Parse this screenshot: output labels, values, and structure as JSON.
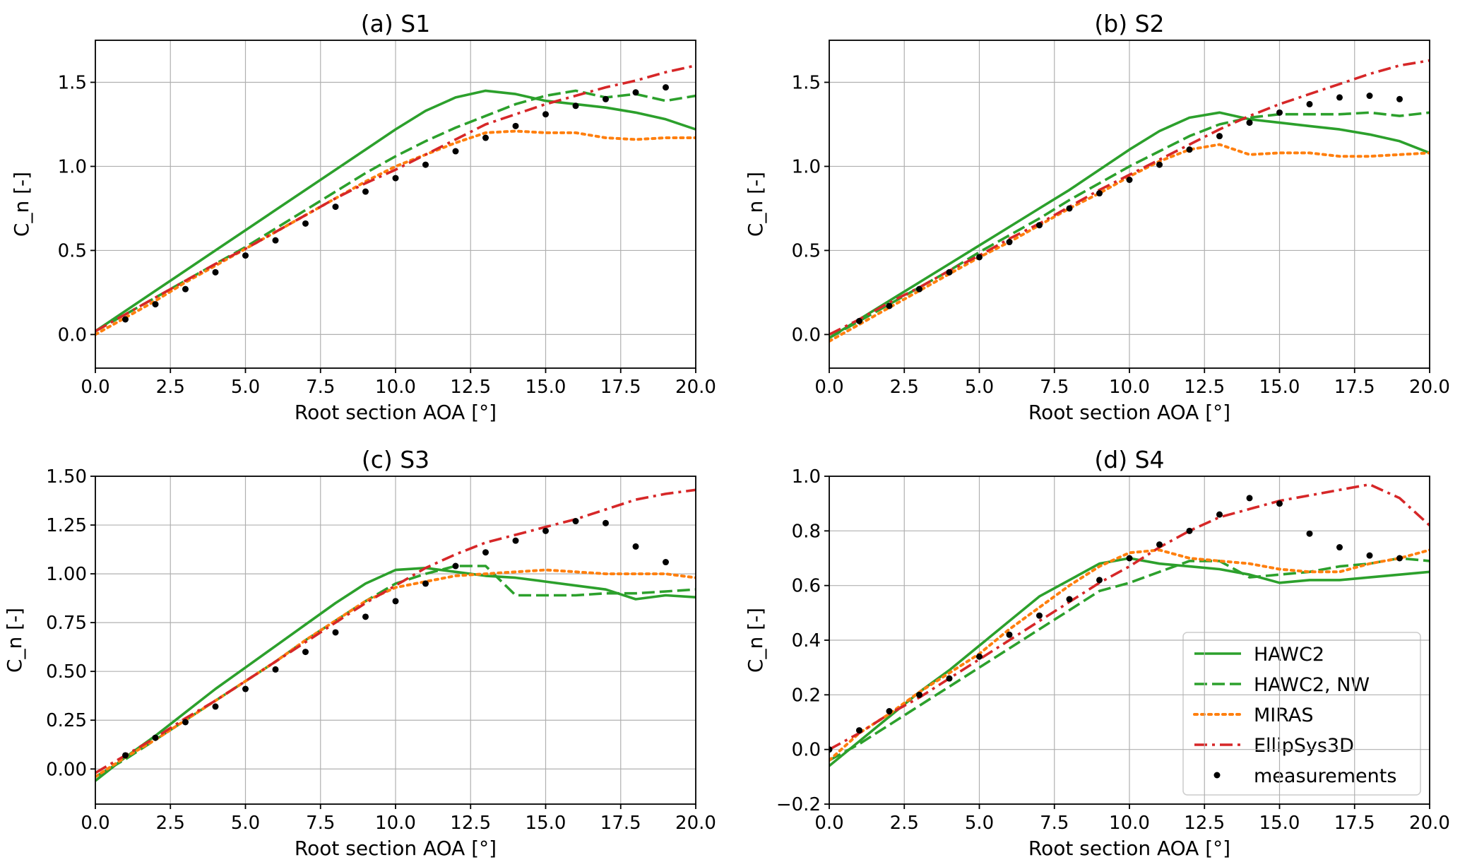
{
  "figure": {
    "series_styles": {
      "HAWC2": {
        "color": "#2ca02c",
        "dash": "solid",
        "marker": "none"
      },
      "HAWC2, NW": {
        "color": "#2ca02c",
        "dash": "dashed",
        "marker": "none"
      },
      "MIRAS": {
        "color": "#ff7f0e",
        "dash": "dotted",
        "marker": "none"
      },
      "EllipSys3D": {
        "color": "#d62728",
        "dash": "dashdot",
        "marker": "none"
      },
      "measurements": {
        "color": "#000000",
        "dash": "none",
        "marker": "dot"
      }
    },
    "legend": {
      "panel": 3,
      "placement": "lower-right",
      "entries": [
        "HAWC2",
        "HAWC2, NW",
        "MIRAS",
        "EllipSys3D",
        "measurements"
      ]
    }
  },
  "chart_data": [
    {
      "type": "line",
      "title": "(a) S1",
      "xlabel": "Root section AOA [°]",
      "ylabel": "C_n [-]",
      "xlim": [
        0,
        20
      ],
      "ylim": [
        -0.2,
        1.75
      ],
      "xticks": [
        "0.0",
        "2.5",
        "5.0",
        "7.5",
        "10.0",
        "12.5",
        "15.0",
        "17.5",
        "20.0"
      ],
      "xtick_values": [
        0,
        2.5,
        5,
        7.5,
        10,
        12.5,
        15,
        17.5,
        20
      ],
      "yticks": [
        "0.0",
        "0.5",
        "1.0",
        "1.5"
      ],
      "ytick_values": [
        0,
        0.5,
        1.0,
        1.5
      ],
      "grid": true,
      "series": [
        {
          "name": "HAWC2",
          "x": [
            0,
            1,
            2,
            3,
            4,
            5,
            6,
            7,
            8,
            9,
            10,
            11,
            12,
            13,
            14,
            15,
            16,
            17,
            18,
            19,
            20
          ],
          "y": [
            0.02,
            0.14,
            0.26,
            0.38,
            0.5,
            0.62,
            0.74,
            0.86,
            0.98,
            1.1,
            1.22,
            1.33,
            1.41,
            1.45,
            1.43,
            1.39,
            1.37,
            1.35,
            1.32,
            1.28,
            1.22
          ]
        },
        {
          "name": "HAWC2, NW",
          "x": [
            0,
            1,
            2,
            3,
            4,
            5,
            6,
            7,
            8,
            9,
            10,
            11,
            12,
            13,
            14,
            15,
            16,
            17,
            18,
            19,
            20
          ],
          "y": [
            0.02,
            0.12,
            0.22,
            0.32,
            0.42,
            0.52,
            0.63,
            0.74,
            0.85,
            0.96,
            1.06,
            1.15,
            1.23,
            1.3,
            1.37,
            1.42,
            1.45,
            1.41,
            1.43,
            1.39,
            1.42
          ]
        },
        {
          "name": "MIRAS",
          "x": [
            0,
            1,
            2,
            3,
            4,
            5,
            6,
            7,
            8,
            9,
            10,
            11,
            12,
            13,
            14,
            15,
            16,
            17,
            18,
            19,
            20
          ],
          "y": [
            0.0,
            0.1,
            0.2,
            0.31,
            0.41,
            0.51,
            0.61,
            0.71,
            0.81,
            0.91,
            1.0,
            1.07,
            1.14,
            1.2,
            1.21,
            1.2,
            1.2,
            1.17,
            1.16,
            1.17,
            1.17
          ]
        },
        {
          "name": "EllipSys3D",
          "x": [
            0,
            1,
            2,
            3,
            4,
            5,
            6,
            7,
            8,
            9,
            10,
            11,
            12,
            13,
            14,
            15,
            16,
            17,
            18,
            19,
            20
          ],
          "y": [
            0.02,
            0.12,
            0.22,
            0.32,
            0.42,
            0.51,
            0.61,
            0.71,
            0.81,
            0.9,
            0.98,
            1.07,
            1.16,
            1.25,
            1.31,
            1.37,
            1.42,
            1.47,
            1.51,
            1.56,
            1.6
          ]
        },
        {
          "name": "measurements",
          "x": [
            1,
            2,
            3,
            4,
            5,
            6,
            7,
            8,
            9,
            10,
            11,
            12,
            13,
            14,
            15,
            16,
            17,
            18,
            19
          ],
          "y": [
            0.09,
            0.18,
            0.27,
            0.37,
            0.47,
            0.56,
            0.66,
            0.76,
            0.85,
            0.93,
            1.01,
            1.09,
            1.17,
            1.24,
            1.31,
            1.36,
            1.4,
            1.44,
            1.47
          ]
        }
      ]
    },
    {
      "type": "line",
      "title": "(b) S2",
      "xlabel": "Root section AOA [°]",
      "ylabel": "C_n [-]",
      "xlim": [
        0,
        20
      ],
      "ylim": [
        -0.2,
        1.75
      ],
      "xticks": [
        "0.0",
        "2.5",
        "5.0",
        "7.5",
        "10.0",
        "12.5",
        "15.0",
        "17.5",
        "20.0"
      ],
      "xtick_values": [
        0,
        2.5,
        5,
        7.5,
        10,
        12.5,
        15,
        17.5,
        20
      ],
      "yticks": [
        "0.0",
        "0.5",
        "1.0",
        "1.5"
      ],
      "ytick_values": [
        0,
        0.5,
        1.0,
        1.5
      ],
      "grid": true,
      "series": [
        {
          "name": "HAWC2",
          "x": [
            0,
            1,
            2,
            3,
            4,
            5,
            6,
            7,
            8,
            9,
            10,
            11,
            12,
            13,
            14,
            15,
            16,
            17,
            18,
            19,
            20
          ],
          "y": [
            -0.02,
            0.09,
            0.2,
            0.31,
            0.42,
            0.53,
            0.64,
            0.75,
            0.86,
            0.98,
            1.1,
            1.21,
            1.29,
            1.32,
            1.28,
            1.26,
            1.24,
            1.22,
            1.19,
            1.15,
            1.08
          ]
        },
        {
          "name": "HAWC2, NW",
          "x": [
            0,
            1,
            2,
            3,
            4,
            5,
            6,
            7,
            8,
            9,
            10,
            11,
            12,
            13,
            14,
            15,
            16,
            17,
            18,
            19,
            20
          ],
          "y": [
            -0.02,
            0.08,
            0.18,
            0.28,
            0.38,
            0.49,
            0.59,
            0.69,
            0.8,
            0.9,
            1.0,
            1.09,
            1.18,
            1.25,
            1.29,
            1.31,
            1.31,
            1.31,
            1.32,
            1.3,
            1.32
          ]
        },
        {
          "name": "MIRAS",
          "x": [
            0,
            1,
            2,
            3,
            4,
            5,
            6,
            7,
            8,
            9,
            10,
            11,
            12,
            13,
            14,
            15,
            16,
            17,
            18,
            19,
            20
          ],
          "y": [
            -0.04,
            0.06,
            0.16,
            0.26,
            0.36,
            0.46,
            0.55,
            0.65,
            0.75,
            0.84,
            0.94,
            1.03,
            1.1,
            1.13,
            1.07,
            1.08,
            1.08,
            1.06,
            1.06,
            1.07,
            1.08
          ]
        },
        {
          "name": "EllipSys3D",
          "x": [
            0,
            1,
            2,
            3,
            4,
            5,
            6,
            7,
            8,
            9,
            10,
            11,
            12,
            13,
            14,
            15,
            16,
            17,
            18,
            19,
            20
          ],
          "y": [
            0.0,
            0.09,
            0.19,
            0.28,
            0.38,
            0.47,
            0.57,
            0.66,
            0.76,
            0.86,
            0.95,
            1.04,
            1.13,
            1.22,
            1.3,
            1.37,
            1.43,
            1.49,
            1.55,
            1.6,
            1.63
          ]
        },
        {
          "name": "measurements",
          "x": [
            1,
            2,
            3,
            4,
            5,
            6,
            7,
            8,
            9,
            10,
            11,
            12,
            13,
            14,
            15,
            16,
            17,
            18,
            19
          ],
          "y": [
            0.08,
            0.17,
            0.27,
            0.37,
            0.46,
            0.55,
            0.65,
            0.75,
            0.84,
            0.92,
            1.01,
            1.1,
            1.18,
            1.26,
            1.32,
            1.37,
            1.41,
            1.42,
            1.4
          ]
        }
      ]
    },
    {
      "type": "line",
      "title": "(c) S3",
      "xlabel": "Root section AOA [°]",
      "ylabel": "C_n [-]",
      "xlim": [
        0,
        20
      ],
      "ylim": [
        -0.18,
        1.5
      ],
      "xticks": [
        "0.0",
        "2.5",
        "5.0",
        "7.5",
        "10.0",
        "12.5",
        "15.0",
        "17.5",
        "20.0"
      ],
      "xtick_values": [
        0,
        2.5,
        5,
        7.5,
        10,
        12.5,
        15,
        17.5,
        20
      ],
      "yticks": [
        "0.00",
        "0.25",
        "0.50",
        "0.75",
        "1.00",
        "1.25",
        "1.50"
      ],
      "ytick_values": [
        0,
        0.25,
        0.5,
        0.75,
        1.0,
        1.25,
        1.5
      ],
      "grid": true,
      "series": [
        {
          "name": "HAWC2",
          "x": [
            0,
            1,
            2,
            3,
            4,
            5,
            6,
            7,
            8,
            9,
            10,
            11,
            12,
            13,
            14,
            15,
            16,
            17,
            18,
            19,
            20
          ],
          "y": [
            -0.06,
            0.06,
            0.17,
            0.29,
            0.41,
            0.52,
            0.63,
            0.74,
            0.85,
            0.95,
            1.02,
            1.03,
            1.01,
            0.99,
            0.98,
            0.96,
            0.94,
            0.92,
            0.87,
            0.89,
            0.88
          ]
        },
        {
          "name": "HAWC2, NW",
          "x": [
            0,
            1,
            2,
            3,
            4,
            5,
            6,
            7,
            8,
            9,
            10,
            11,
            12,
            13,
            14,
            15,
            16,
            17,
            18,
            19,
            20
          ],
          "y": [
            -0.04,
            0.05,
            0.15,
            0.25,
            0.35,
            0.45,
            0.55,
            0.66,
            0.76,
            0.86,
            0.95,
            1.0,
            1.04,
            1.04,
            0.89,
            0.89,
            0.89,
            0.9,
            0.9,
            0.91,
            0.92
          ]
        },
        {
          "name": "MIRAS",
          "x": [
            0,
            1,
            2,
            3,
            4,
            5,
            6,
            7,
            8,
            9,
            10,
            11,
            12,
            13,
            14,
            15,
            16,
            17,
            18,
            19,
            20
          ],
          "y": [
            -0.04,
            0.06,
            0.15,
            0.25,
            0.35,
            0.45,
            0.55,
            0.66,
            0.76,
            0.86,
            0.93,
            0.96,
            0.99,
            1.0,
            1.01,
            1.02,
            1.01,
            1.0,
            1.0,
            1.0,
            0.98
          ]
        },
        {
          "name": "EllipSys3D",
          "x": [
            0,
            1,
            2,
            3,
            4,
            5,
            6,
            7,
            8,
            9,
            10,
            11,
            12,
            13,
            14,
            15,
            16,
            17,
            18,
            19,
            20
          ],
          "y": [
            -0.02,
            0.07,
            0.16,
            0.26,
            0.35,
            0.45,
            0.55,
            0.65,
            0.75,
            0.85,
            0.94,
            1.03,
            1.1,
            1.16,
            1.2,
            1.24,
            1.28,
            1.33,
            1.38,
            1.41,
            1.43
          ]
        },
        {
          "name": "measurements",
          "x": [
            1,
            2,
            3,
            4,
            5,
            6,
            7,
            8,
            9,
            10,
            11,
            12,
            13,
            14,
            15,
            16,
            17,
            18,
            19
          ],
          "y": [
            0.07,
            0.16,
            0.24,
            0.32,
            0.41,
            0.51,
            0.6,
            0.7,
            0.78,
            0.86,
            0.95,
            1.04,
            1.11,
            1.17,
            1.22,
            1.27,
            1.26,
            1.14,
            1.06
          ]
        }
      ]
    },
    {
      "type": "line",
      "title": "(d) S4",
      "xlabel": "Root section AOA [°]",
      "ylabel": "C_n [-]",
      "xlim": [
        0,
        20
      ],
      "ylim": [
        -0.2,
        1.0
      ],
      "xticks": [
        "0.0",
        "2.5",
        "5.0",
        "7.5",
        "10.0",
        "12.5",
        "15.0",
        "17.5",
        "20.0"
      ],
      "xtick_values": [
        0,
        2.5,
        5,
        7.5,
        10,
        12.5,
        15,
        17.5,
        20
      ],
      "yticks": [
        "−0.2",
        "0.0",
        "0.2",
        "0.4",
        "0.6",
        "0.8",
        "1.0"
      ],
      "ytick_values": [
        -0.2,
        0,
        0.2,
        0.4,
        0.6,
        0.8,
        1.0
      ],
      "grid": true,
      "series": [
        {
          "name": "HAWC2",
          "x": [
            0,
            1,
            2,
            3,
            4,
            5,
            6,
            7,
            8,
            9,
            10,
            11,
            12,
            13,
            14,
            15,
            16,
            17,
            18,
            19,
            20
          ],
          "y": [
            -0.06,
            0.03,
            0.12,
            0.21,
            0.29,
            0.38,
            0.47,
            0.56,
            0.62,
            0.68,
            0.7,
            0.68,
            0.67,
            0.66,
            0.64,
            0.61,
            0.62,
            0.62,
            0.63,
            0.64,
            0.65
          ]
        },
        {
          "name": "HAWC2, NW",
          "x": [
            0,
            1,
            2,
            3,
            4,
            5,
            6,
            7,
            8,
            9,
            10,
            11,
            12,
            13,
            14,
            15,
            16,
            17,
            18,
            19,
            20
          ],
          "y": [
            -0.04,
            0.02,
            0.09,
            0.16,
            0.23,
            0.3,
            0.37,
            0.44,
            0.51,
            0.58,
            0.61,
            0.65,
            0.69,
            0.69,
            0.63,
            0.64,
            0.65,
            0.67,
            0.68,
            0.7,
            0.69
          ]
        },
        {
          "name": "MIRAS",
          "x": [
            0,
            1,
            2,
            3,
            4,
            5,
            6,
            7,
            8,
            9,
            10,
            11,
            12,
            13,
            14,
            15,
            16,
            17,
            18,
            19,
            20
          ],
          "y": [
            -0.04,
            0.06,
            0.13,
            0.21,
            0.28,
            0.35,
            0.44,
            0.52,
            0.6,
            0.67,
            0.72,
            0.73,
            0.7,
            0.69,
            0.68,
            0.66,
            0.65,
            0.65,
            0.68,
            0.7,
            0.73
          ]
        },
        {
          "name": "EllipSys3D",
          "x": [
            0,
            1,
            2,
            3,
            4,
            5,
            6,
            7,
            8,
            9,
            10,
            11,
            12,
            13,
            14,
            15,
            16,
            17,
            18,
            19,
            20
          ],
          "y": [
            0.0,
            0.06,
            0.13,
            0.19,
            0.26,
            0.33,
            0.4,
            0.47,
            0.54,
            0.61,
            0.67,
            0.74,
            0.8,
            0.85,
            0.88,
            0.91,
            0.93,
            0.95,
            0.97,
            0.92,
            0.82
          ]
        },
        {
          "name": "measurements",
          "x": [
            0,
            1,
            2,
            3,
            4,
            5,
            6,
            7,
            8,
            9,
            10,
            11,
            12,
            13,
            14,
            15,
            16,
            17,
            18,
            19
          ],
          "y": [
            0.0,
            0.07,
            0.14,
            0.2,
            0.26,
            0.34,
            0.42,
            0.49,
            0.55,
            0.62,
            0.7,
            0.75,
            0.8,
            0.86,
            0.92,
            0.9,
            0.79,
            0.74,
            0.71,
            0.7
          ]
        }
      ]
    }
  ]
}
